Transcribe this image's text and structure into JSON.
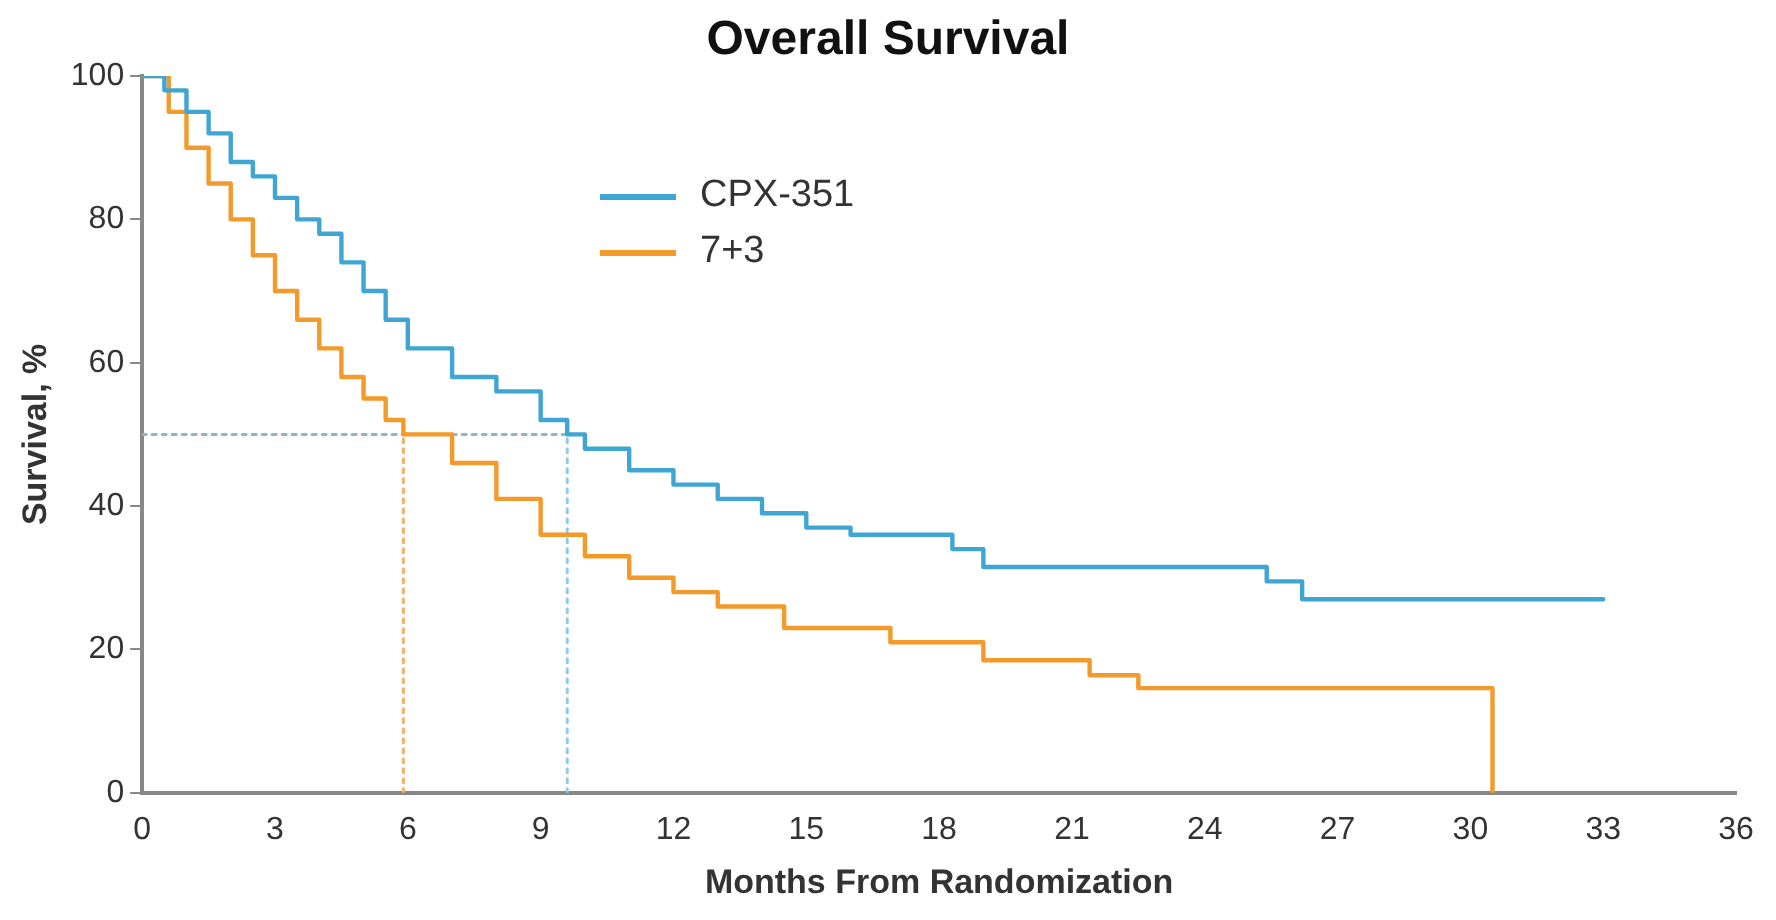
{
  "chart_data": {
    "type": "step",
    "title": "Overall Survival",
    "xlabel": "Months From Randomization",
    "ylabel": "Survival, %",
    "xlim": [
      0,
      36
    ],
    "xticks": [
      0,
      3,
      6,
      9,
      12,
      15,
      18,
      21,
      24,
      27,
      30,
      33,
      36
    ],
    "ylim": [
      0,
      100
    ],
    "yticks": [
      0,
      20,
      40,
      60,
      80,
      100
    ],
    "grid": false,
    "legend": "top left",
    "marker": "none",
    "series": [
      {
        "name": "CPX-351",
        "color": "#3fa6d4",
        "x": [
          0,
          0.5,
          1,
          1.5,
          2,
          2.5,
          3,
          3.5,
          4,
          4.5,
          5,
          5.5,
          6,
          7,
          8,
          9,
          9.6,
          10,
          11,
          12,
          13,
          14,
          15,
          16,
          17,
          18.3,
          19,
          25.4,
          26.2,
          33
        ],
        "values": [
          100,
          98,
          95,
          92,
          88,
          86,
          83,
          80,
          78,
          74,
          70,
          66,
          62,
          58,
          56,
          52,
          50,
          48,
          45,
          43,
          41,
          39,
          37,
          36,
          36,
          34,
          31.5,
          29.5,
          27,
          27
        ]
      },
      {
        "name": "7+3",
        "color": "#f39a2b",
        "x": [
          0,
          0.6,
          1,
          1.5,
          2,
          2.5,
          3,
          3.5,
          4,
          4.5,
          5,
          5.5,
          5.9,
          7,
          8,
          9,
          10,
          11,
          12,
          13,
          14.5,
          16.9,
          19,
          21.4,
          22.5,
          30.5,
          30.5
        ],
        "values": [
          100,
          95,
          90,
          85,
          80,
          75,
          70,
          66,
          62,
          58,
          55,
          52,
          50,
          46,
          41,
          36,
          33,
          30,
          28,
          26,
          23,
          21,
          18.5,
          16.4,
          14.6,
          12.5,
          0
        ]
      },
      {
        "type": "line",
        "line_style": "dotted",
        "color": "#8fb4c8",
        "x": [
          0,
          9.6
        ],
        "values": [
          50,
          50
        ]
      },
      {
        "type": "line",
        "line_style": "dotted",
        "color": "#f3b06a",
        "x": [
          5.9,
          5.9
        ],
        "values": [
          0,
          50
        ]
      },
      {
        "type": "line",
        "line_style": "dotted",
        "color": "#8fcbe6",
        "x": [
          9.6,
          9.6
        ],
        "values": [
          0,
          50
        ]
      }
    ]
  }
}
